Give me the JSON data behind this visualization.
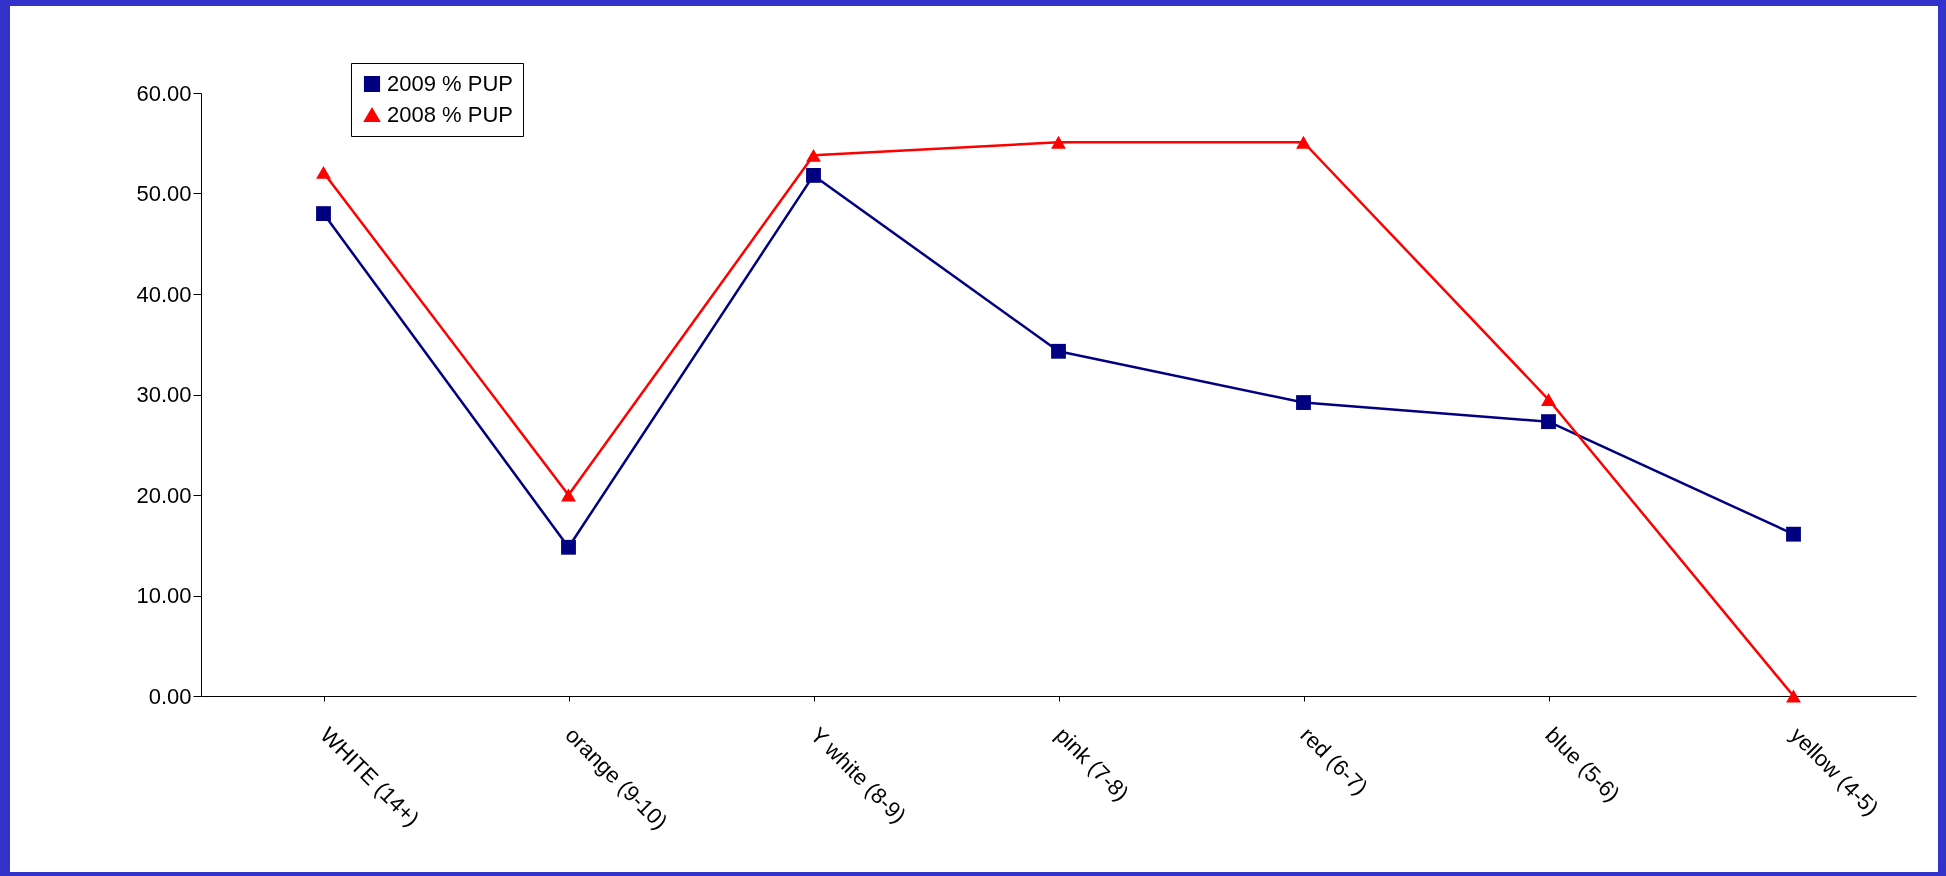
{
  "chart_data": {
    "type": "line",
    "categories": [
      "WHITE (14+)",
      "orange (9-10)",
      "Y white (8-9)",
      "pink (7-8)",
      "red (6-7)",
      "blue (5-6)",
      "yellow (4-5)"
    ],
    "series": [
      {
        "name": "2009 % PUP",
        "color": "#000080",
        "marker": "square",
        "values": [
          48.0,
          14.8,
          51.8,
          34.3,
          29.2,
          27.3,
          16.1
        ]
      },
      {
        "name": "2008 % PUP",
        "color": "#ff0000",
        "marker": "triangle",
        "values": [
          52.1,
          20.0,
          53.8,
          55.1,
          55.1,
          29.5,
          0.0
        ]
      }
    ],
    "ylim": [
      0,
      60
    ],
    "yticks": [
      {
        "value": 0,
        "label": "0.00"
      },
      {
        "value": 10,
        "label": "10.00"
      },
      {
        "value": 20,
        "label": "20.00"
      },
      {
        "value": 30,
        "label": "30.00"
      },
      {
        "value": 40,
        "label": "40.00"
      },
      {
        "value": 50,
        "label": "50.00"
      },
      {
        "value": 60,
        "label": "60.00"
      }
    ],
    "grid": false,
    "legend": "top left",
    "line_style": "solid"
  }
}
